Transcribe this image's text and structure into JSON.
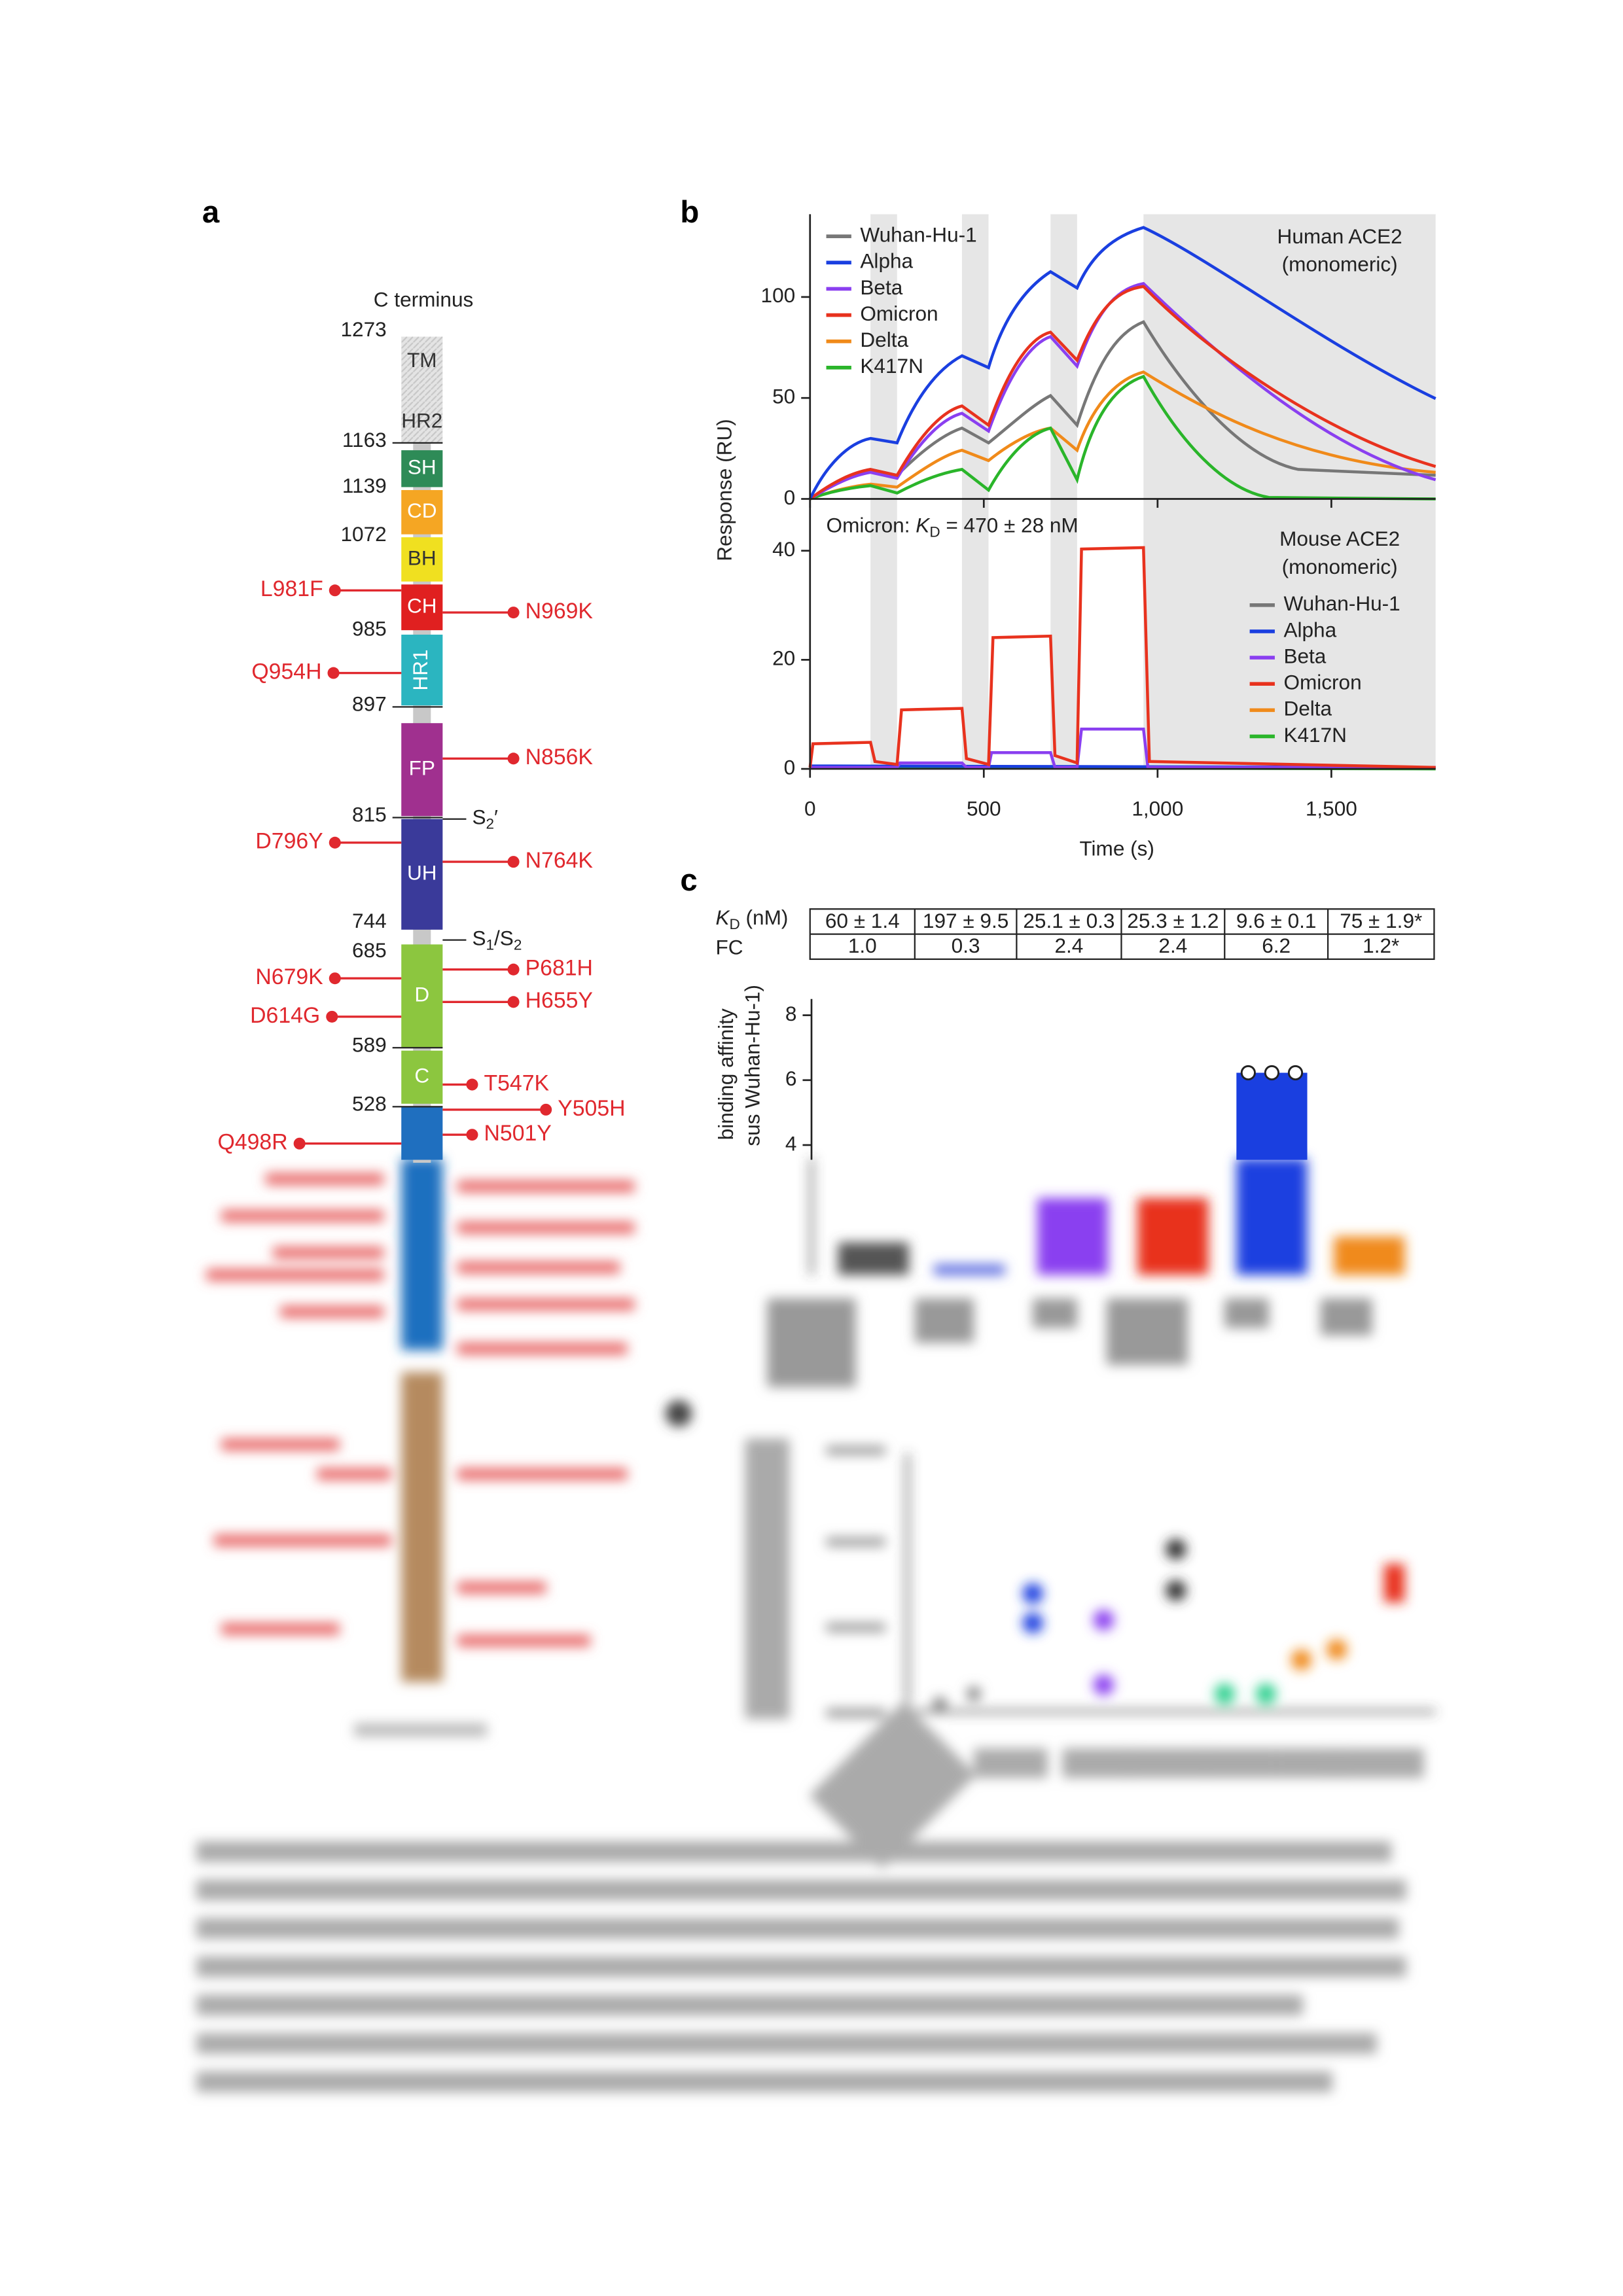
{
  "panel_a": {
    "letter": "a",
    "top_label": "C terminus",
    "residues": [
      1273,
      1163,
      1139,
      1072,
      985,
      897,
      815,
      744,
      685,
      589,
      528
    ],
    "domains": [
      "TM",
      "HR2",
      "SH",
      "CD",
      "BH",
      "CH",
      "HR1",
      "FP",
      "UH",
      "D",
      "C"
    ],
    "cleavage_sites": [
      {
        "base": "S",
        "sub": "2",
        "after": "′"
      },
      {
        "base": "S",
        "sub": "1",
        "mid": "/S",
        "sub2": "2"
      }
    ],
    "mutations": [
      "L981F",
      "N969K",
      "Q954H",
      "N856K",
      "D796Y",
      "N764K",
      "N679K",
      "P681H",
      "D614G",
      "H655Y",
      "T547K",
      "Y505H",
      "Q498R",
      "N501Y"
    ]
  },
  "panel_b": {
    "letter": "b",
    "y_label": "Response (RU)",
    "x_label": "Time (s)",
    "xlim": [
      0,
      1800
    ],
    "xticks": [
      0,
      500,
      {
        "value": 1000,
        "label": "1,000"
      },
      {
        "value": 1500,
        "label": "1,500"
      }
    ],
    "human": {
      "title": [
        "Human ACE2",
        "(monomeric)"
      ],
      "ylim": [
        0,
        141
      ],
      "yticks": [
        0,
        50,
        100
      ]
    },
    "mouse": {
      "title": [
        "Mouse ACE2",
        "(monomeric)"
      ],
      "ylim": [
        0,
        49.5
      ],
      "yticks": [
        0,
        20,
        40
      ],
      "annotation": {
        "prefix": "Omicron: ",
        "k": "K",
        "sub": "D",
        "suffix": " = 470 ± 28 nM"
      }
    },
    "series": [
      {
        "name": "Wuhan-Hu-1",
        "color": "#777777"
      },
      {
        "name": "Alpha",
        "color": "#1a3fe0"
      },
      {
        "name": "Beta",
        "color": "#8a3ff0"
      },
      {
        "name": "Omicron",
        "color": "#e8321e"
      },
      {
        "name": "Delta",
        "color": "#f08a1a"
      },
      {
        "name": "K417N",
        "color": "#2ab52a"
      }
    ]
  },
  "panel_c": {
    "letter": "c",
    "row_labels": [
      {
        "k": "K",
        "sub": "D",
        "rest": " (nM)"
      },
      "FC"
    ],
    "table": [
      [
        "60 ± 1.4",
        "197 ± 9.5",
        "25.1 ± 0.3",
        "25.3 ± 1.2",
        "9.6 ± 0.1",
        "75 ± 1.9*"
      ],
      [
        "1.0",
        "0.3",
        "2.4",
        "2.4",
        "6.2",
        "1.2*"
      ]
    ],
    "y_label": [
      "binding affinity",
      "sus Wuhan-Hu-1)"
    ],
    "ylim": [
      0,
      8.5
    ],
    "yticks": [
      4,
      6,
      8
    ]
  }
}
